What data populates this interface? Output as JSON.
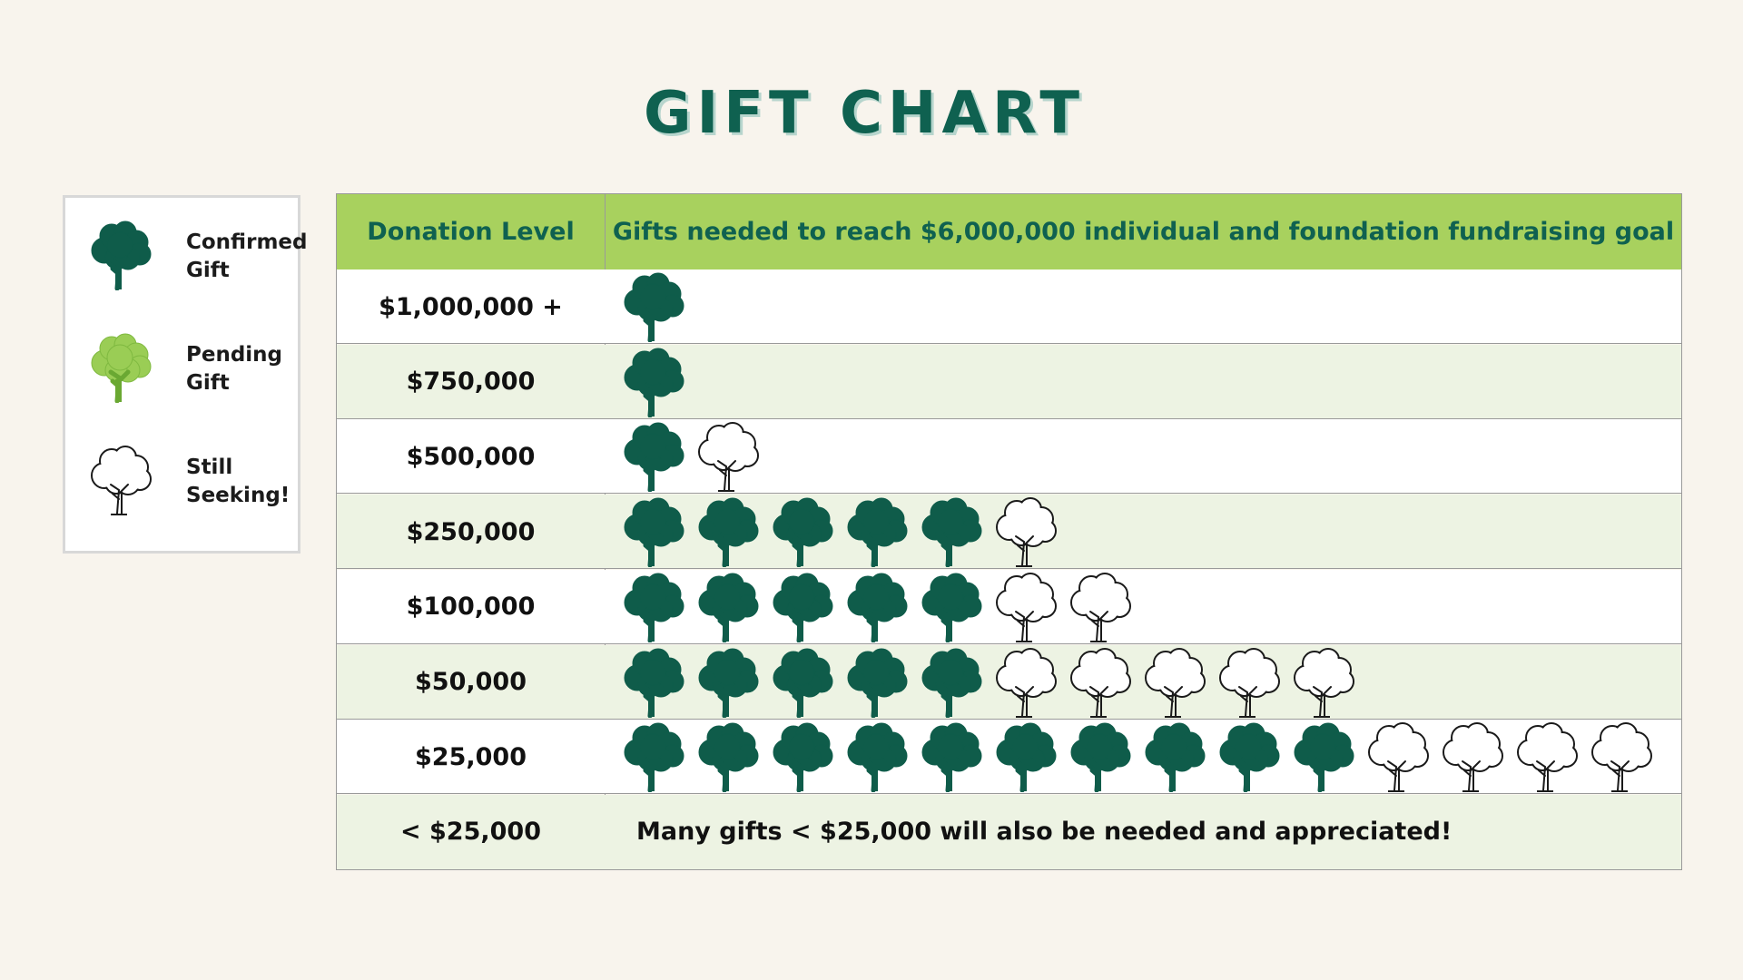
{
  "title": "GIFT CHART",
  "legend": [
    {
      "status": "confirmed",
      "line1": "Confirmed",
      "line2": "Gift"
    },
    {
      "status": "pending",
      "line1": "Pending",
      "line2": "Gift"
    },
    {
      "status": "seeking",
      "line1": "Still",
      "line2": "Seeking!"
    }
  ],
  "colors": {
    "confirmed": "#0f5c4a",
    "pending": "#9acd55",
    "seeking": "#ffffff",
    "header_bg": "#a8d15e",
    "title": "#0f6150"
  },
  "chart_data": {
    "type": "table",
    "title": "GIFT CHART",
    "columns": [
      "Donation Level",
      "Gifts needed to reach $6,000,000 individual and foundation fundraising goal"
    ],
    "rows": [
      {
        "level": "$1,000,000 +",
        "confirmed": 1,
        "pending": 0,
        "seeking": 0
      },
      {
        "level": "$750,000",
        "confirmed": 1,
        "pending": 0,
        "seeking": 0
      },
      {
        "level": "$500,000",
        "confirmed": 1,
        "pending": 0,
        "seeking": 1
      },
      {
        "level": "$250,000",
        "confirmed": 5,
        "pending": 0,
        "seeking": 1
      },
      {
        "level": "$100,000",
        "confirmed": 5,
        "pending": 0,
        "seeking": 2
      },
      {
        "level": "$50,000",
        "confirmed": 5,
        "pending": 0,
        "seeking": 5
      },
      {
        "level": "$25,000",
        "confirmed": 10,
        "pending": 0,
        "seeking": 4
      },
      {
        "level": "< $25,000",
        "note": "Many gifts < $25,000 will also be needed and appreciated!"
      }
    ]
  }
}
